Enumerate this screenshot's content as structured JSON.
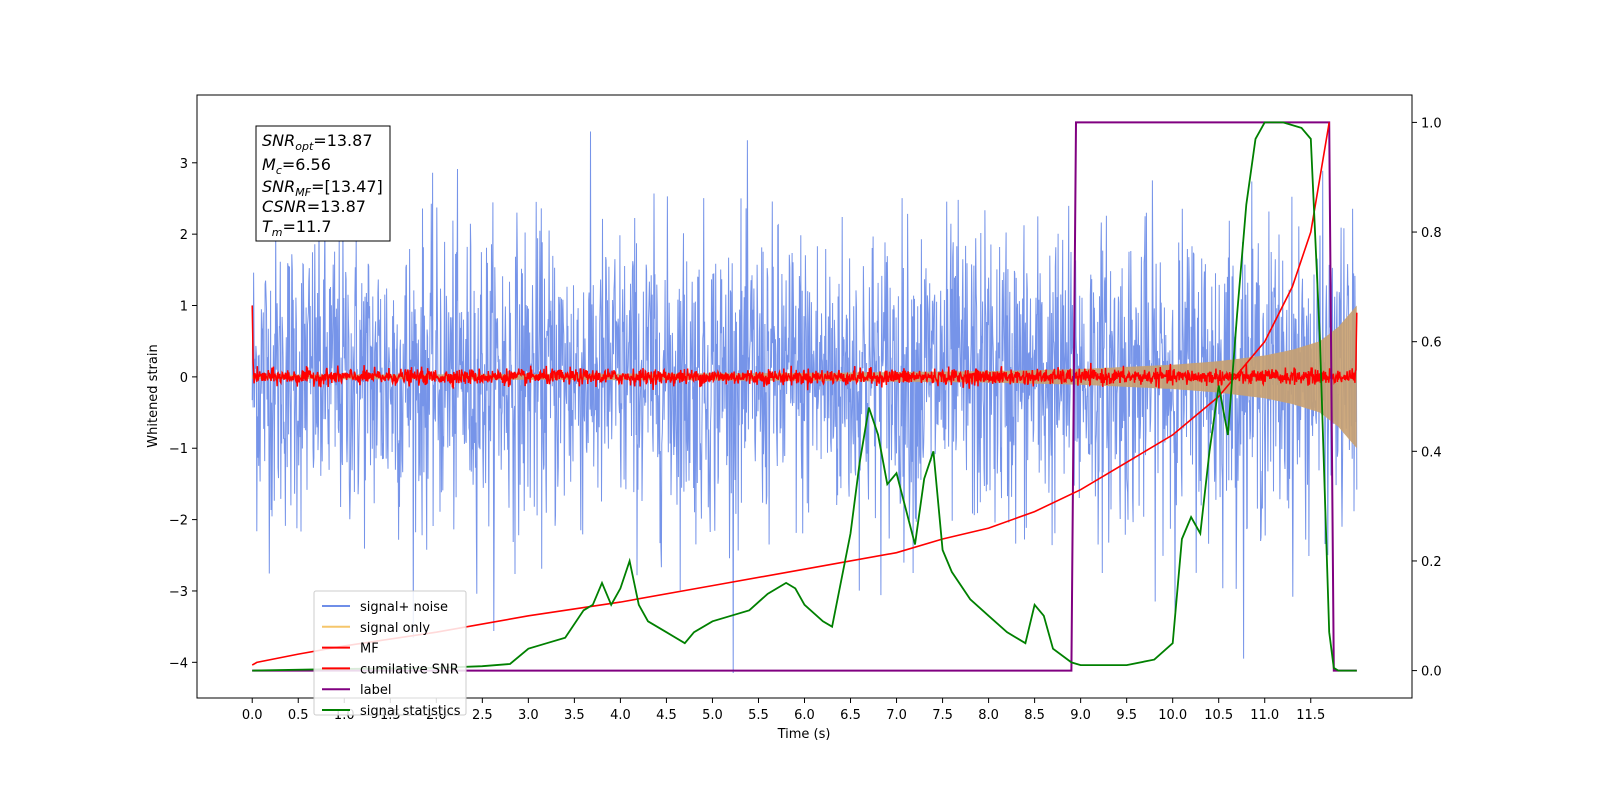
{
  "chart_data": {
    "type": "line",
    "xlabel": "Time (s)",
    "ylabel_left": "Whitened strain",
    "xlim": [
      -0.6,
      12.6
    ],
    "ylim_left": [
      -4.5,
      3.95
    ],
    "ylim_right": [
      -0.05,
      1.05
    ],
    "x_ticks": [
      "0.0",
      "0.5",
      "1.0",
      "1.5",
      "2.0",
      "2.5",
      "3.0",
      "3.5",
      "4.0",
      "4.5",
      "5.0",
      "5.5",
      "6.0",
      "6.5",
      "7.0",
      "7.5",
      "8.0",
      "8.5",
      "9.0",
      "9.5",
      "10.0",
      "10.5",
      "11.0",
      "11.5"
    ],
    "y_ticks_left": [
      "3",
      "2",
      "1",
      "0",
      "−1",
      "−2",
      "−3",
      "−4"
    ],
    "y_ticks_right": [
      "1.0",
      "0.8",
      "0.6",
      "0.4",
      "0.2",
      "0.0"
    ],
    "grid": false,
    "legend_position": "lower-left",
    "annotation": {
      "snr_opt": {
        "base": "SNR",
        "sub": "opt",
        "value": "=13.87"
      },
      "mc": {
        "base": "M",
        "sub": "c",
        "value": "=6.56"
      },
      "snr_mf": {
        "base": "SNR",
        "sub": "MF",
        "value": "=[13.47]"
      },
      "csnr": {
        "base": "CSNR",
        "sub": "",
        "value": "=13.87"
      },
      "tm": {
        "base": "T",
        "sub": "m",
        "value": "=11.7"
      }
    },
    "series": [
      {
        "name": "signal+ noise",
        "color": "#6f8ee8",
        "axis": "left",
        "style": "noise band, amplitude ~1.4 sigma, range about -4.15 to 3.6",
        "x_range": [
          0.0,
          12.0
        ]
      },
      {
        "name": "signal only",
        "color": "#f5c66b",
        "axis": "left",
        "style": "chirp envelope growing toward merger",
        "envelope_x": [
          0.0,
          2.0,
          4.0,
          6.0,
          8.0,
          9.0,
          10.0,
          10.5,
          11.0,
          11.3,
          11.6,
          11.8,
          12.0
        ],
        "envelope_amp": [
          0.03,
          0.035,
          0.045,
          0.055,
          0.08,
          0.11,
          0.17,
          0.22,
          0.3,
          0.38,
          0.5,
          0.7,
          1.0
        ]
      },
      {
        "name": "MF",
        "color": "#ff0000",
        "axis": "left",
        "style": "noisy trace around 0, amplitude ~0.07",
        "x_range": [
          0.0,
          12.0
        ]
      },
      {
        "name": "cumilative SNR",
        "color": "#ff0000",
        "axis": "right",
        "x": [
          0.0,
          0.05,
          0.5,
          1.0,
          2.0,
          3.0,
          4.0,
          5.0,
          6.0,
          7.0,
          7.5,
          8.0,
          8.5,
          9.0,
          9.5,
          10.0,
          10.5,
          11.0,
          11.3,
          11.5,
          11.7
        ],
        "values": [
          0.01,
          0.015,
          0.03,
          0.045,
          0.07,
          0.1,
          0.125,
          0.155,
          0.185,
          0.215,
          0.24,
          0.26,
          0.29,
          0.33,
          0.38,
          0.43,
          0.5,
          0.6,
          0.7,
          0.8,
          1.0
        ]
      },
      {
        "name": "label",
        "color": "#800080",
        "axis": "right",
        "x": [
          0.0,
          8.9,
          8.95,
          11.7,
          11.75,
          12.0
        ],
        "values": [
          0.0,
          0.0,
          1.0,
          1.0,
          0.0,
          0.0
        ]
      },
      {
        "name": "signal statistics",
        "color": "#008000",
        "axis": "right",
        "x": [
          0.0,
          1.0,
          2.0,
          2.5,
          2.8,
          3.0,
          3.2,
          3.4,
          3.6,
          3.7,
          3.8,
          3.9,
          4.0,
          4.1,
          4.2,
          4.3,
          4.5,
          4.7,
          4.8,
          5.0,
          5.2,
          5.4,
          5.6,
          5.8,
          5.9,
          6.0,
          6.2,
          6.3,
          6.5,
          6.6,
          6.7,
          6.8,
          6.9,
          7.0,
          7.2,
          7.3,
          7.4,
          7.5,
          7.6,
          7.8,
          8.0,
          8.2,
          8.4,
          8.5,
          8.6,
          8.7,
          8.9,
          9.0,
          9.5,
          9.8,
          10.0,
          10.1,
          10.2,
          10.3,
          10.4,
          10.5,
          10.6,
          10.7,
          10.8,
          10.9,
          11.0,
          11.2,
          11.4,
          11.5,
          11.6,
          11.7,
          11.75,
          11.8,
          12.0
        ],
        "values": [
          0.0,
          0.003,
          0.005,
          0.008,
          0.012,
          0.04,
          0.05,
          0.06,
          0.11,
          0.12,
          0.16,
          0.12,
          0.15,
          0.2,
          0.12,
          0.09,
          0.07,
          0.05,
          0.07,
          0.09,
          0.1,
          0.11,
          0.14,
          0.16,
          0.15,
          0.12,
          0.09,
          0.08,
          0.25,
          0.38,
          0.48,
          0.43,
          0.34,
          0.36,
          0.23,
          0.35,
          0.4,
          0.22,
          0.18,
          0.13,
          0.1,
          0.07,
          0.05,
          0.12,
          0.1,
          0.04,
          0.015,
          0.01,
          0.01,
          0.02,
          0.05,
          0.24,
          0.28,
          0.25,
          0.4,
          0.52,
          0.43,
          0.65,
          0.85,
          0.97,
          1.0,
          1.0,
          0.99,
          0.97,
          0.6,
          0.07,
          0.005,
          0.0,
          0.0
        ]
      }
    ]
  }
}
